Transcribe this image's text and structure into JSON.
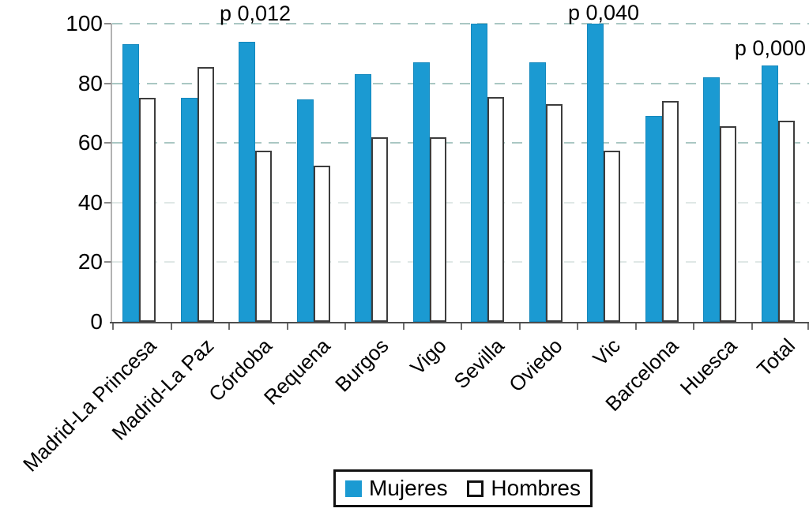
{
  "chart_data": {
    "type": "bar",
    "title": "",
    "xlabel": "",
    "ylabel": "",
    "ylim": [
      0,
      100
    ],
    "yticks": [
      0,
      20,
      40,
      60,
      80,
      100
    ],
    "gridlines": {
      "style": "dashed",
      "major_levels": [
        60,
        80,
        100
      ],
      "minor_levels": [
        20,
        40
      ],
      "major_color": "#aac7c3",
      "minor_color": "#dfe8e6"
    },
    "categories": [
      "Madrid-La Princesa",
      "Madrid-La Paz",
      "Córdoba",
      "Requena",
      "Burgos",
      "Vigo",
      "Sevilla",
      "Oviedo",
      "Vic",
      "Barcelona",
      "Huesca",
      "Total"
    ],
    "series": [
      {
        "name": "Mujeres",
        "style": "filled",
        "color": "#1b9ad2",
        "values": [
          93,
          75,
          94,
          74.5,
          83,
          87,
          100,
          87,
          100,
          69,
          82,
          86
        ]
      },
      {
        "name": "Hombres",
        "style": "outline",
        "color": "#ffffff",
        "border_color": "#3d3d3d",
        "values": [
          75,
          85.5,
          57.5,
          52.5,
          62,
          62,
          75.5,
          73,
          57.5,
          74,
          65.5,
          67.5
        ]
      }
    ],
    "annotations": [
      {
        "text": "p 0,012",
        "category": "Córdoba"
      },
      {
        "text": "p 0,040",
        "category": "Vic"
      },
      {
        "text": "p 0,000",
        "category": "Total"
      }
    ],
    "legend": {
      "position": "bottom",
      "entries": [
        "Mujeres",
        "Hombres"
      ]
    }
  }
}
